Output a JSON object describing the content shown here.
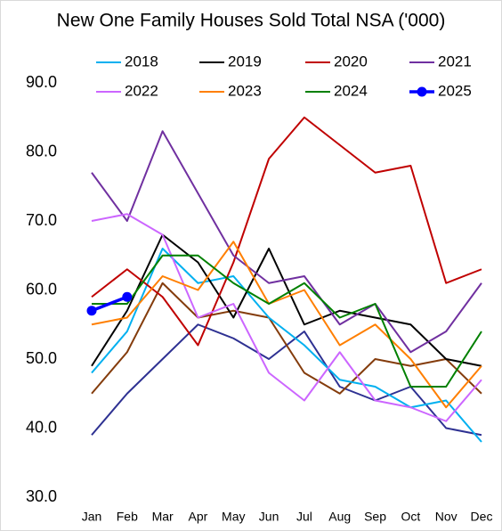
{
  "chart_data": {
    "type": "line",
    "title": "New One Family Houses Sold Total NSA ('000)",
    "categories": [
      "Jan",
      "Feb",
      "Mar",
      "Apr",
      "May",
      "Jun",
      "Jul",
      "Aug",
      "Sep",
      "Oct",
      "Nov",
      "Dec"
    ],
    "ylim": [
      30,
      90
    ],
    "yticks": [
      {
        "value": 30,
        "label": "30.0"
      },
      {
        "value": 40,
        "label": "40.0"
      },
      {
        "value": 50,
        "label": "50.0"
      },
      {
        "value": 60,
        "label": "60.0"
      },
      {
        "value": 70,
        "label": "70.0"
      },
      {
        "value": 80,
        "label": "80.0"
      },
      {
        "value": 90,
        "label": "90.0"
      }
    ],
    "grid": false,
    "legend": "top",
    "series": [
      {
        "color": "#2e3192",
        "values": [
          39,
          45,
          50,
          55,
          53,
          50,
          54,
          46,
          44,
          46,
          40,
          39
        ]
      },
      {
        "color": "#843c0c",
        "values": [
          45,
          51,
          61,
          56,
          57,
          56,
          48,
          45,
          50,
          49,
          50,
          45
        ]
      },
      {
        "name": "2018",
        "color": "#00b0f0",
        "values": [
          48,
          54,
          66,
          61,
          62,
          56,
          52,
          47,
          46,
          43,
          44,
          38
        ]
      },
      {
        "name": "2019",
        "color": "#000000",
        "values": [
          49,
          57,
          68,
          64,
          56,
          66,
          55,
          57,
          56,
          55,
          50,
          49
        ]
      },
      {
        "name": "2020",
        "color": "#c00000",
        "values": [
          59,
          63,
          59,
          52,
          64,
          79,
          85,
          81,
          77,
          78,
          61,
          63
        ]
      },
      {
        "name": "2021",
        "color": "#7030a0",
        "values": [
          77,
          70,
          83,
          74,
          65,
          61,
          62,
          55,
          58,
          51,
          54,
          61
        ]
      },
      {
        "name": "2022",
        "color": "#cc66ff",
        "values": [
          70,
          71,
          68,
          56,
          58,
          48,
          44,
          51,
          44,
          43,
          41,
          47
        ]
      },
      {
        "name": "2023",
        "color": "#ff7f00",
        "values": [
          55,
          56,
          62,
          60,
          67,
          58,
          60,
          52,
          55,
          50,
          43,
          49
        ]
      },
      {
        "name": "2024",
        "color": "#008000",
        "values": [
          58,
          58,
          65,
          65,
          61,
          58,
          61,
          56,
          58,
          46,
          46,
          54
        ]
      },
      {
        "name": "2025",
        "color": "#0000ff",
        "markers": true,
        "values": [
          57,
          59,
          null,
          null,
          null,
          null,
          null,
          null,
          null,
          null,
          null,
          null
        ]
      }
    ]
  }
}
